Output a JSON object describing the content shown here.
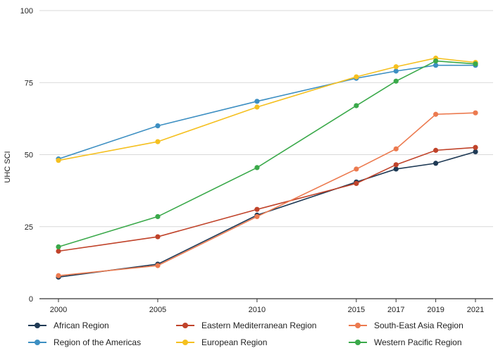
{
  "chart_data": {
    "type": "line",
    "title": "",
    "xlabel": "",
    "ylabel": "UHC SCI",
    "x": [
      2000,
      2005,
      2010,
      2015,
      2017,
      2019,
      2021
    ],
    "x_tick_labels": [
      "2000",
      "2005",
      "2010",
      "2015",
      "2017",
      "2019",
      "2021"
    ],
    "y_ticks": [
      0,
      25,
      50,
      75,
      100
    ],
    "y_tick_labels": [
      "0",
      "25",
      "50",
      "75",
      "100"
    ],
    "ylim": [
      0,
      100
    ],
    "grid": "horizontal",
    "legend_position": "bottom",
    "series": [
      {
        "name": "African Region",
        "color": "#1f3a55",
        "values": [
          7.5,
          12,
          29,
          40.5,
          45,
          47,
          51
        ]
      },
      {
        "name": "Eastern Mediterranean Region",
        "color": "#c0432a",
        "values": [
          16.5,
          21.5,
          31,
          40,
          46.5,
          51.5,
          52.5
        ]
      },
      {
        "name": "South-East Asia Region",
        "color": "#ec7a4f",
        "values": [
          8,
          11.5,
          28.5,
          45,
          52,
          64,
          64.5
        ]
      },
      {
        "name": "Region of the Americas",
        "color": "#3d8fc2",
        "values": [
          48.5,
          60,
          68.5,
          76.5,
          79,
          81,
          81
        ]
      },
      {
        "name": "European Region",
        "color": "#f5c020",
        "values": [
          48,
          54.5,
          66.5,
          77,
          80.5,
          83.5,
          82
        ]
      },
      {
        "name": "Western Pacific Region",
        "color": "#3aa94a",
        "values": [
          18,
          28.5,
          45.5,
          67,
          75.5,
          82.5,
          81.5
        ]
      }
    ]
  }
}
